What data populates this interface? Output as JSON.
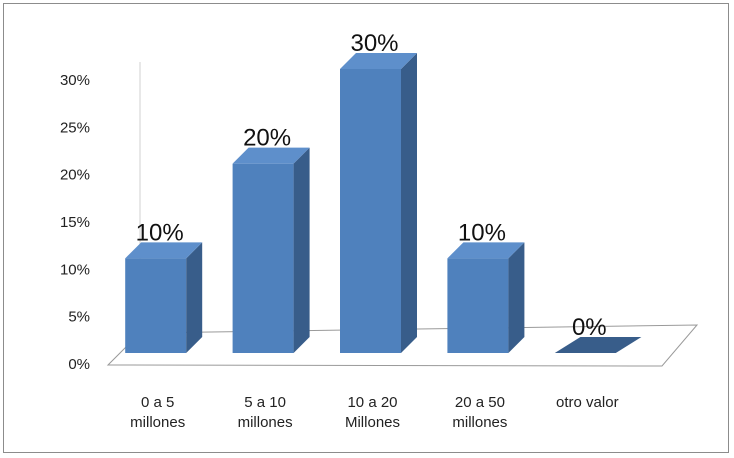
{
  "chart_data": {
    "type": "bar",
    "title": "",
    "xlabel": "",
    "ylabel": "",
    "categories": [
      [
        "0 a 5",
        "millones"
      ],
      [
        "5 a 10",
        "millones"
      ],
      [
        "10 a 20",
        "Millones"
      ],
      [
        "20 a 50",
        "millones"
      ],
      [
        "otro valor"
      ]
    ],
    "values": [
      10,
      20,
      30,
      10,
      0
    ],
    "data_labels": [
      "10%",
      "20%",
      "30%",
      "10%",
      "0%"
    ],
    "ylim": [
      0,
      30
    ],
    "yticks": [
      "0%",
      "5%",
      "10%",
      "15%",
      "20%",
      "25%",
      "30%"
    ],
    "grid": false,
    "legend": "none",
    "style": "3d-column",
    "colors": {
      "bar_front": "#4F81BD",
      "bar_side": "#385D8A",
      "bar_top": "#5E8FCB",
      "floor": "#9a9a9a"
    }
  }
}
